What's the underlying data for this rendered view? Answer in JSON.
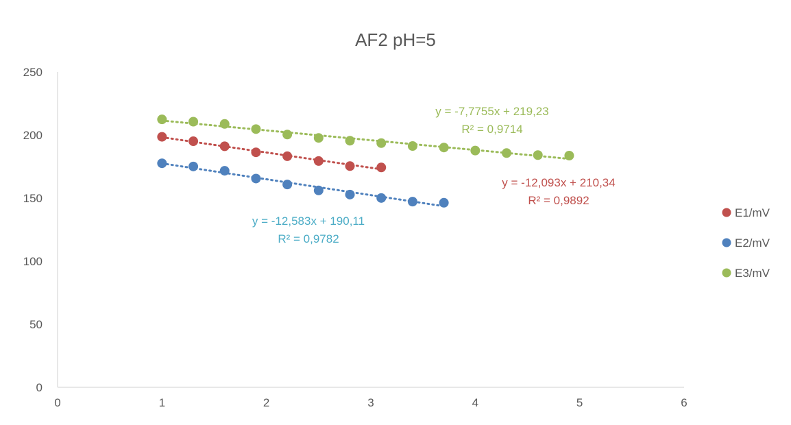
{
  "chart_data": {
    "type": "scatter",
    "title": "AF2 pH=5",
    "xlabel": "",
    "ylabel": "",
    "xlim": [
      0,
      6
    ],
    "ylim": [
      0,
      250
    ],
    "x_ticks": [
      0,
      1,
      2,
      3,
      4,
      5,
      6
    ],
    "y_ticks": [
      0,
      50,
      100,
      150,
      200,
      250
    ],
    "grid": false,
    "legend_position": "right",
    "trendline_style": "dotted",
    "series": [
      {
        "name": "E1/mV",
        "color": "#C0504D",
        "x": [
          1,
          1.3,
          1.6,
          1.9,
          2.2,
          2.5,
          2.8,
          3.1
        ],
        "y": [
          198.6,
          195.1,
          191.1,
          186.3,
          183.2,
          179.4,
          175.4,
          174.3
        ],
        "trendline": {
          "slope": -12.093,
          "intercept": 210.34,
          "x_range": [
            1,
            3.1
          ],
          "equation": "y = -12,093x + 210,34",
          "r2": "R² = 0,9892"
        }
      },
      {
        "name": "E2/mV",
        "color": "#4F81BD",
        "x": [
          1,
          1.3,
          1.6,
          1.9,
          2.2,
          2.5,
          2.8,
          3.1,
          3.4,
          3.7
        ],
        "y": [
          177.6,
          175.1,
          171.7,
          165.5,
          160.8,
          156.1,
          152.8,
          150.1,
          147.2,
          146.3
        ],
        "trendline": {
          "slope": -12.583,
          "intercept": 190.11,
          "x_range": [
            1,
            3.7
          ],
          "equation": "y = -12,583x + 190,11",
          "r2": "R² = 0,9782"
        }
      },
      {
        "name": "E3/mV",
        "color": "#9BBB59",
        "x": [
          1,
          1.3,
          1.6,
          1.9,
          2.2,
          2.5,
          2.8,
          3.1,
          3.4,
          3.7,
          4.0,
          4.3,
          4.6,
          4.9
        ],
        "y": [
          212.4,
          210.6,
          208.8,
          204.7,
          200.4,
          197.7,
          195.5,
          193.6,
          191.3,
          190.1,
          187.7,
          185.7,
          184.1,
          183.7
        ],
        "trendline": {
          "slope": -7.7755,
          "intercept": 219.23,
          "x_range": [
            1,
            4.9
          ],
          "equation": "y = -7,7755x + 219,23",
          "r2": "R² = 0,9714"
        }
      }
    ]
  },
  "style": {
    "axis_color": "#D9D9D9",
    "text_color": "#595959",
    "border_color": "#D9D9D9",
    "equation_colors": {
      "E1/mV": "#C0504D",
      "E2/mV": "#4BACC6",
      "E3/mV": "#9BBB59"
    }
  }
}
